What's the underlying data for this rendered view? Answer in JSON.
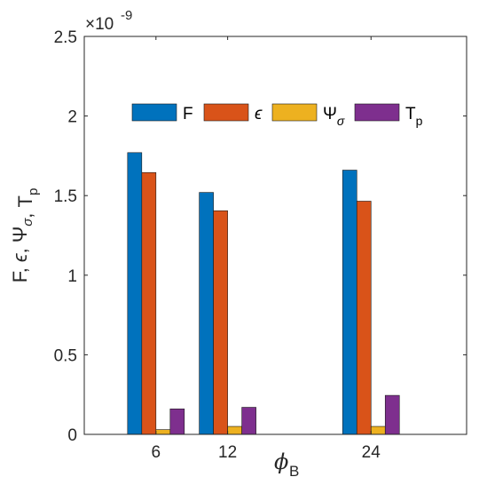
{
  "chart_data": {
    "type": "bar",
    "categories": [
      "6",
      "12",
      "24"
    ],
    "x": [
      6,
      12,
      24
    ],
    "xlim": [
      0,
      32
    ],
    "xticks": [
      "6",
      "12",
      "24"
    ],
    "series": [
      {
        "name": "F",
        "color": "#0072BD",
        "values": [
          1.77,
          1.52,
          1.66
        ]
      },
      {
        "name": "ϵ",
        "color": "#D95319",
        "values": [
          1.645,
          1.405,
          1.465
        ]
      },
      {
        "name": "Ψ_σ",
        "color": "#EDB120",
        "values": [
          0.03,
          0.05,
          0.05
        ]
      },
      {
        "name": "T_p",
        "color": "#7E2F8E",
        "values": [
          0.16,
          0.17,
          0.245
        ]
      }
    ],
    "ylim": [
      0,
      2.5
    ],
    "yticks": [
      "0",
      "0.5",
      "1",
      "1.5",
      "2",
      "2.5"
    ],
    "y_exponent_label": "×10",
    "y_exponent_power": "-9",
    "xlabel": "ϕ",
    "xlabel_sub": "B",
    "ylabel": "F, ϵ, Ψ_σ, T_p",
    "legend_placement": "top, horizontal",
    "grid": false,
    "box": true
  }
}
